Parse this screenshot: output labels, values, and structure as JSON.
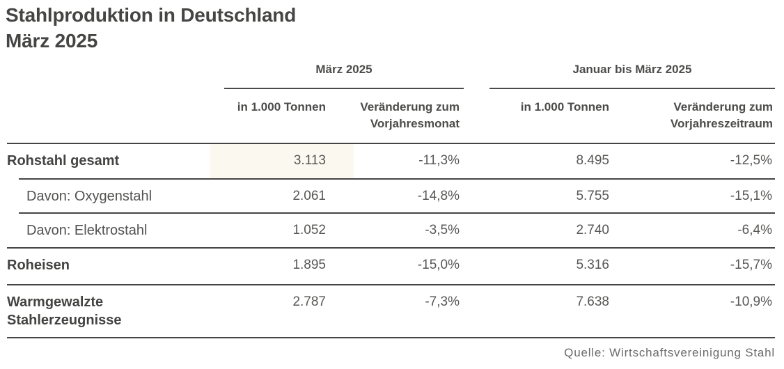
{
  "title": {
    "line1": "Stahlproduktion in Deutschland",
    "line2": "März 2025"
  },
  "table": {
    "groups": [
      {
        "label": "März 2025",
        "unit_header": "in 1.000 Tonnen",
        "change_header_line1": "Veränderung zum",
        "change_header_line2": "Vorjahresmonat"
      },
      {
        "label": "Januar bis März 2025",
        "unit_header": "in 1.000 Tonnen",
        "change_header_line1": "Veränderung zum",
        "change_header_line2": "Vorjahreszeitraum"
      }
    ],
    "rows": [
      {
        "label": "Rohstahl gesamt",
        "style": "bold",
        "values": [
          "3.113",
          "-11,3%",
          "8.495",
          "-12,5%"
        ],
        "highlight_first_cell": true
      },
      {
        "label": "Davon: Oxygenstahl",
        "style": "sub",
        "values": [
          "2.061",
          "-14,8%",
          "5.755",
          "-15,1%"
        ],
        "highlight_first_cell": false
      },
      {
        "label": "Davon: Elektrostahl",
        "style": "sub",
        "values": [
          "1.052",
          "-3,5%",
          "2.740",
          "-6,4%"
        ],
        "highlight_first_cell": false
      },
      {
        "label": "Roheisen",
        "style": "bold",
        "values": [
          "1.895",
          "-15,0%",
          "5.316",
          "-15,7%"
        ],
        "highlight_first_cell": false
      },
      {
        "label": "Warmgewalzte Stahlerzeugnisse",
        "style": "bold",
        "values": [
          "2.787",
          "-7,3%",
          "7.638",
          "-10,9%"
        ],
        "highlight_first_cell": false
      }
    ]
  },
  "source": "Quelle: Wirtschaftsvereinigung Stahl",
  "colors": {
    "title_text": "#454544",
    "header_text": "#4c4c4b",
    "label_bold": "#434342",
    "label_regular": "#525251",
    "value_text": "#575756",
    "rule": "#454545",
    "highlight": "#fbf8ef",
    "source_text": "#6b6b6a",
    "background": "#ffffff"
  },
  "chart_data": {
    "type": "table",
    "title": "Stahlproduktion in Deutschland März 2025",
    "column_groups": [
      "März 2025",
      "Januar bis März 2025"
    ],
    "columns": [
      "März 2025 – in 1.000 Tonnen",
      "März 2025 – Veränderung zum Vorjahresmonat",
      "Januar bis März 2025 – in 1.000 Tonnen",
      "Januar bis März 2025 – Veränderung zum Vorjahreszeitraum"
    ],
    "rows": [
      {
        "label": "Rohstahl gesamt",
        "tonnes_maerz": 3113,
        "change_vorjahresmonat": "-11,3%",
        "tonnes_jan_maerz": 8495,
        "change_vorjahreszeitraum": "-12,5%"
      },
      {
        "label": "Davon: Oxygenstahl",
        "tonnes_maerz": 2061,
        "change_vorjahresmonat": "-14,8%",
        "tonnes_jan_maerz": 5755,
        "change_vorjahreszeitraum": "-15,1%"
      },
      {
        "label": "Davon: Elektrostahl",
        "tonnes_maerz": 1052,
        "change_vorjahresmonat": "-3,5%",
        "tonnes_jan_maerz": 2740,
        "change_vorjahreszeitraum": "-6,4%"
      },
      {
        "label": "Roheisen",
        "tonnes_maerz": 1895,
        "change_vorjahresmonat": "-15,0%",
        "tonnes_jan_maerz": 5316,
        "change_vorjahreszeitraum": "-15,7%"
      },
      {
        "label": "Warmgewalzte Stahlerzeugnisse",
        "tonnes_maerz": 2787,
        "change_vorjahresmonat": "-7,3%",
        "tonnes_jan_maerz": 7638,
        "change_vorjahreszeitraum": "-10,9%"
      }
    ],
    "source": "Quelle: Wirtschaftsvereinigung Stahl"
  }
}
